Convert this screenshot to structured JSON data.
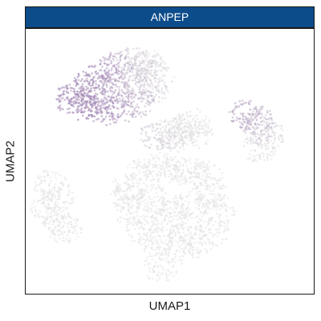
{
  "chart_data": {
    "type": "scatter",
    "title": "ANPEP",
    "xlabel": "UMAP1",
    "ylabel": "UMAP2",
    "grid": false,
    "legend": "none",
    "colors": {
      "strip": "#0d4c8a",
      "low": "#e3e3e3",
      "high": "#8e6aa6"
    },
    "clusters": [
      {
        "name": "upper-left",
        "points": [
          [
            -6.0,
            6.2
          ],
          [
            -5.2,
            6.8
          ],
          [
            -4.4,
            7.4
          ],
          [
            -3.4,
            7.8
          ],
          [
            -2.4,
            7.6
          ],
          [
            -1.8,
            6.8
          ],
          [
            -2.2,
            5.8
          ],
          [
            -3.0,
            5.0
          ],
          [
            -4.0,
            4.6
          ],
          [
            -5.0,
            4.4
          ],
          [
            -6.4,
            4.8
          ],
          [
            -7.2,
            5.2
          ],
          [
            -6.6,
            5.6
          ],
          [
            -5.4,
            5.2
          ],
          [
            -4.2,
            5.8
          ],
          [
            -3.2,
            6.6
          ],
          [
            -2.8,
            7.2
          ]
        ],
        "expression": [
          0.9,
          0.9,
          0.7,
          0.3,
          0.2,
          0.2,
          0.3,
          0.5,
          0.7,
          0.9,
          1.0,
          0.8,
          0.9,
          0.8,
          0.6,
          0.4,
          0.3
        ]
      },
      {
        "name": "mid-small",
        "points": [
          [
            -1.8,
            2.8
          ],
          [
            -1.0,
            3.0
          ],
          [
            -0.2,
            3.2
          ],
          [
            0.4,
            3.6
          ],
          [
            0.6,
            2.9
          ],
          [
            -0.6,
            2.6
          ]
        ],
        "expression": [
          0.3,
          0.2,
          0.1,
          0.1,
          0.1,
          0.2
        ]
      },
      {
        "name": "right-small",
        "points": [
          [
            3.8,
            4.2
          ],
          [
            4.4,
            3.8
          ],
          [
            4.6,
            3.2
          ],
          [
            5.2,
            2.8
          ],
          [
            4.6,
            1.9
          ]
        ],
        "expression": [
          0.7,
          0.5,
          0.4,
          0.2,
          0.1
        ]
      },
      {
        "name": "left-small",
        "points": [
          [
            -8.4,
            -0.6
          ],
          [
            -8.0,
            -1.4
          ],
          [
            -8.6,
            -2.2
          ],
          [
            -8.0,
            -3.0
          ],
          [
            -7.6,
            -3.6
          ]
        ],
        "expression": [
          0.0,
          0.0,
          0.0,
          0.0,
          0.0
        ]
      },
      {
        "name": "large-lower",
        "points": [
          [
            -3.6,
            -0.8
          ],
          [
            -2.6,
            0.2
          ],
          [
            -1.6,
            0.6
          ],
          [
            -0.6,
            0.4
          ],
          [
            0.4,
            0.2
          ],
          [
            1.2,
            0.0
          ],
          [
            1.6,
            -1.2
          ],
          [
            2.0,
            -2.4
          ],
          [
            1.6,
            -3.8
          ],
          [
            0.6,
            -4.6
          ],
          [
            -0.6,
            -5.0
          ],
          [
            -1.8,
            -4.4
          ],
          [
            -2.8,
            -3.6
          ],
          [
            -3.4,
            -2.4
          ],
          [
            -3.6,
            -1.4
          ],
          [
            -2.0,
            -1.6
          ],
          [
            -0.8,
            -2.2
          ],
          [
            0.4,
            -1.8
          ],
          [
            -1.2,
            -3.2
          ],
          [
            0.0,
            -3.4
          ],
          [
            -1.6,
            -6.2
          ]
        ],
        "expression": [
          0.0,
          0.0,
          0.0,
          0.0,
          0.0,
          0.0,
          0.0,
          0.0,
          0.0,
          0.0,
          0.0,
          0.0,
          0.0,
          0.0,
          0.0,
          0.0,
          0.0,
          0.0,
          0.0,
          0.0,
          0.0
        ]
      }
    ],
    "xlim": [
      -10,
      8
    ],
    "ylim": [
      -8,
      10
    ]
  }
}
